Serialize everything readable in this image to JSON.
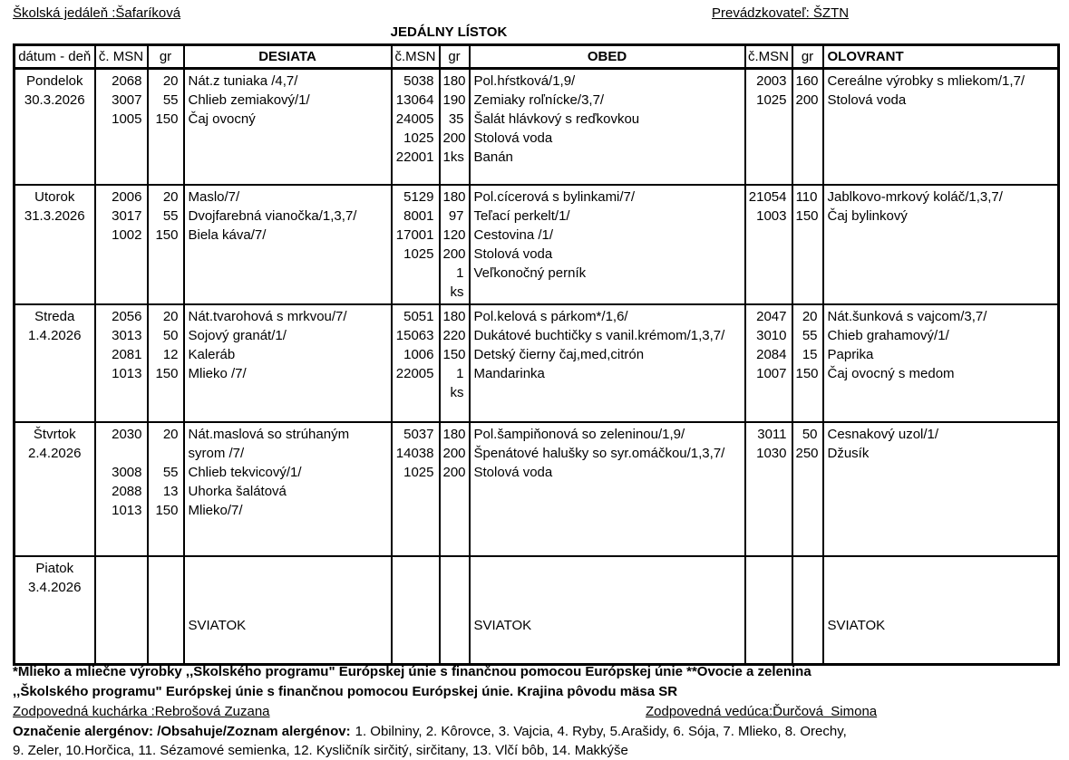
{
  "page": {
    "school": "Školská jedáleň :Šafaríková",
    "operator": "Prevádzkovateľ: ŠZTN",
    "title": "JEDÁLNY LÍSTOK"
  },
  "table": {
    "headers": [
      "dátum - deň",
      "č. MSN",
      "gr",
      "DESIATA",
      "č.MSN",
      "gr",
      "OBED",
      "č.MSN",
      "gr",
      "OLOVRANT"
    ],
    "rows": [
      {
        "day": "Pondelok",
        "date": "30.3.2026",
        "desiata": {
          "msn": [
            "2068",
            "3007",
            "1005"
          ],
          "gr": [
            "20",
            "55",
            "150"
          ],
          "items": [
            "Nát.z tuniaka /4,7/",
            "Chlieb zemiakový/1/",
            "Čaj ovocný"
          ]
        },
        "obed": {
          "msn": [
            "5038",
            "13064",
            "24005",
            "1025",
            "22001"
          ],
          "gr": [
            "180",
            "190",
            "35",
            "200",
            "1ks"
          ],
          "items": [
            "Pol.hŕstková/1,9/",
            "Zemiaky roľnícke/3,7/",
            "Šalát hlávkový s reďkovkou",
            "Stolová voda",
            "Banán"
          ]
        },
        "olovrant": {
          "msn": [
            "2003",
            "1025"
          ],
          "gr": [
            "160",
            "200"
          ],
          "items": [
            "Cereálne výrobky s mliekom/1,7/",
            "Stolová voda"
          ]
        }
      },
      {
        "day": "Utorok",
        "date": "31.3.2026",
        "desiata": {
          "msn": [
            "2006",
            "3017",
            "1002"
          ],
          "gr": [
            "20",
            "55",
            "150"
          ],
          "items": [
            "Maslo/7/",
            "Dvojfarebná vianočka/1,3,7/",
            "Biela káva/7/"
          ]
        },
        "obed": {
          "msn": [
            "5129",
            "8001",
            "17001",
            "1025",
            ""
          ],
          "gr": [
            "180",
            "97",
            "120",
            "200",
            "1 ks"
          ],
          "items": [
            "Pol.cícerová s bylinkami/7/",
            "Teľací perkelt/1/",
            "Cestovina /1/",
            "Stolová voda",
            "Veľkonočný perník"
          ]
        },
        "olovrant": {
          "msn": [
            "21054",
            "1003"
          ],
          "gr": [
            "110",
            "150"
          ],
          "items": [
            "Jablkovo-mrkový koláč/1,3,7/",
            "Čaj bylinkový"
          ]
        }
      },
      {
        "day": "Streda",
        "date": "1.4.2026",
        "desiata": {
          "msn": [
            "2056",
            "3013",
            "2081",
            "1013"
          ],
          "gr": [
            "20",
            "50",
            "12",
            "150"
          ],
          "items": [
            "Nát.tvarohová s mrkvou/7/",
            "Sojový granát/1/",
            "Kaleráb",
            "Mlieko /7/"
          ]
        },
        "obed": {
          "msn": [
            "5051",
            "15063",
            "1006",
            "22005"
          ],
          "gr": [
            "180",
            "220",
            "150",
            "1 ks"
          ],
          "items": [
            "Pol.kelová s párkom*/1,6/",
            "Dukátové buchtičky s vanil.krémom/1,3,7/",
            "Detský čierny čaj,med,citrón",
            "Mandarinka"
          ]
        },
        "olovrant": {
          "msn": [
            "2047",
            "3010",
            "2084",
            "1007"
          ],
          "gr": [
            "20",
            "55",
            "15",
            "150"
          ],
          "items": [
            "Nát.šunková s vajcom/3,7/",
            "Chieb grahamový/1/",
            "Paprika",
            "Čaj ovocný s medom"
          ]
        }
      },
      {
        "day": "Štvrtok",
        "date": "2.4.2026",
        "desiata": {
          "msn": [
            "2030",
            "",
            "3008",
            "2088",
            "1013"
          ],
          "gr": [
            "20",
            "",
            "55",
            "13",
            "150"
          ],
          "items": [
            "Nát.maslová so strúhaným",
            "syrom /7/",
            "Chlieb tekvicový/1/",
            "Uhorka šalátová",
            "Mlieko/7/"
          ]
        },
        "obed": {
          "msn": [
            "5037",
            "14038",
            "1025"
          ],
          "gr": [
            "180",
            "200",
            "200"
          ],
          "items": [
            "Pol.šampiňonová so zeleninou/1,9/",
            "Špenátové halušky so syr.omáčkou/1,3,7/",
            "Stolová voda"
          ]
        },
        "olovrant": {
          "msn": [
            "3011",
            "1030"
          ],
          "gr": [
            "50",
            "250"
          ],
          "items": [
            "Cesnakový uzol/1/",
            "Džusík"
          ]
        }
      },
      {
        "day": "Piatok",
        "date": "3.4.2026",
        "desiata": {
          "msn": [],
          "gr": [],
          "items": [
            "",
            "",
            "",
            "SVIATOK"
          ]
        },
        "obed": {
          "msn": [],
          "gr": [],
          "items": [
            "",
            "",
            "",
            "SVIATOK"
          ]
        },
        "olovrant": {
          "msn": [],
          "gr": [],
          "items": [
            "",
            "",
            "",
            "SVIATOK"
          ]
        }
      }
    ]
  },
  "footer": {
    "note1": "*Mlieko a mliečne výrobky ,,Školského programu\" Európskej únie s finančnou pomocou Európskej únie **Ovocie a zelenina",
    "note2": ",,Školského programu\" Európskej únie s finančnou pomocou Európskej únie. Krajina pôvodu mäsa SR",
    "cook": "Zodpovedná kuchárka :Rebrošová Zuzana",
    "manager": "Zodpovedná vedúca:Ďurčová  Simona",
    "allergens_label": "Označenie alergénov: /Obsahuje/Zoznam alergénov:",
    "allergens_line1": "1. Obilniny, 2. Kôrovce, 3. Vajcia, 4. Ryby, 5.Arašidy, 6. Sója, 7. Mlieko, 8. Orechy,",
    "allergens_line2": "9. Zeler, 10.Horčica, 11. Sézamové semienka, 12. Kysličník sirčitý, sirčitany, 13. Vlčí bôb, 14. Makkýše"
  }
}
